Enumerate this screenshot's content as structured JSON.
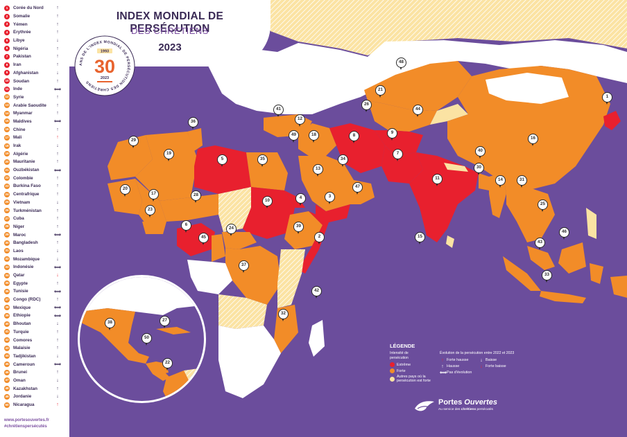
{
  "title": {
    "main": "INDEX MONDIAL DE PERSÉCUTION",
    "sub": "DES CHRÉTIENS",
    "year": "2023"
  },
  "badge": {
    "number": "30",
    "start_year": "1993",
    "end_year": "2023",
    "ring_text": "ANS DE L'INDEX MONDIAL DE PERSÉCUTION DES CHRÉTIENS"
  },
  "colors": {
    "extreme": "#e8202e",
    "forte": "#f28c28",
    "autres": "#fbe3a3",
    "ocean": "#6b4d9c",
    "land_none": "#ffffff",
    "brand_purple": "#7b4fa0",
    "text_dark": "#3a2a55"
  },
  "ranking": [
    {
      "rank": "1",
      "country": "Corée du Nord",
      "trend": "↑",
      "level": "extreme"
    },
    {
      "rank": "2",
      "country": "Somalie",
      "trend": "↑",
      "level": "extreme"
    },
    {
      "rank": "3",
      "country": "Yémen",
      "trend": "↑",
      "level": "extreme"
    },
    {
      "rank": "4",
      "country": "Érythrée",
      "trend": "↑",
      "level": "extreme"
    },
    {
      "rank": "5",
      "country": "Libye",
      "trend": "↓",
      "level": "extreme"
    },
    {
      "rank": "6",
      "country": "Nigéria",
      "trend": "↑",
      "level": "extreme"
    },
    {
      "rank": "7",
      "country": "Pakistan",
      "trend": "↑",
      "level": "extreme"
    },
    {
      "rank": "8",
      "country": "Iran",
      "trend": "↑",
      "level": "extreme"
    },
    {
      "rank": "9",
      "country": "Afghanistan",
      "trend": "↓",
      "level": "extreme"
    },
    {
      "rank": "10",
      "country": "Soudan",
      "trend": "↑",
      "level": "extreme"
    },
    {
      "rank": "11",
      "country": "Inde",
      "trend": "⟺",
      "level": "extreme"
    },
    {
      "rank": "12",
      "country": "Syrie",
      "trend": "↑",
      "level": "forte"
    },
    {
      "rank": "13",
      "country": "Arabie Saoudite",
      "trend": "↑",
      "level": "forte"
    },
    {
      "rank": "14",
      "country": "Myanmar",
      "trend": "↑",
      "level": "forte"
    },
    {
      "rank": "15",
      "country": "Maldives",
      "trend": "⟺",
      "level": "forte"
    },
    {
      "rank": "16",
      "country": "Chine",
      "trend": "↑",
      "level": "forte"
    },
    {
      "rank": "17",
      "country": "Mali",
      "trend": "↑",
      "level": "forte",
      "trend_red": true
    },
    {
      "rank": "18",
      "country": "Irak",
      "trend": "↓",
      "level": "forte"
    },
    {
      "rank": "19",
      "country": "Algérie",
      "trend": "↑",
      "level": "forte"
    },
    {
      "rank": "20",
      "country": "Mauritanie",
      "trend": "↑",
      "level": "forte"
    },
    {
      "rank": "21",
      "country": "Ouzbékistan",
      "trend": "⟺",
      "level": "forte"
    },
    {
      "rank": "22",
      "country": "Colombie",
      "trend": "↑",
      "level": "forte"
    },
    {
      "rank": "23",
      "country": "Burkina Faso",
      "trend": "↑",
      "level": "forte"
    },
    {
      "rank": "24",
      "country": "Centrafrique",
      "trend": "↑",
      "level": "forte"
    },
    {
      "rank": "25",
      "country": "Vietnam",
      "trend": "↓",
      "level": "forte"
    },
    {
      "rank": "26",
      "country": "Turkménistan",
      "trend": "↑",
      "level": "forte"
    },
    {
      "rank": "27",
      "country": "Cuba",
      "trend": "↑",
      "level": "forte"
    },
    {
      "rank": "28",
      "country": "Niger",
      "trend": "↑",
      "level": "forte"
    },
    {
      "rank": "29",
      "country": "Maroc",
      "trend": "⟺",
      "level": "forte"
    },
    {
      "rank": "30",
      "country": "Bangladesh",
      "trend": "↑",
      "level": "forte"
    },
    {
      "rank": "31",
      "country": "Laos",
      "trend": "↓",
      "level": "forte"
    },
    {
      "rank": "32",
      "country": "Mozambique",
      "trend": "↓",
      "level": "forte"
    },
    {
      "rank": "33",
      "country": "Indonésie",
      "trend": "⟺",
      "level": "forte"
    },
    {
      "rank": "34",
      "country": "Qatar",
      "trend": "↓",
      "level": "forte",
      "trend_red": true
    },
    {
      "rank": "35",
      "country": "Égypte",
      "trend": "↑",
      "level": "forte"
    },
    {
      "rank": "36",
      "country": "Tunisie",
      "trend": "⟺",
      "level": "forte"
    },
    {
      "rank": "37",
      "country": "Congo (RDC)",
      "trend": "↑",
      "level": "forte"
    },
    {
      "rank": "38",
      "country": "Mexique",
      "trend": "⟺",
      "level": "forte"
    },
    {
      "rank": "39",
      "country": "Éthiopie",
      "trend": "⟺",
      "level": "forte"
    },
    {
      "rank": "40",
      "country": "Bhoutan",
      "trend": "↓",
      "level": "forte"
    },
    {
      "rank": "41",
      "country": "Turquie",
      "trend": "↑",
      "level": "forte"
    },
    {
      "rank": "42",
      "country": "Comores",
      "trend": "↑",
      "level": "forte"
    },
    {
      "rank": "43",
      "country": "Malaisie",
      "trend": "↑",
      "level": "forte"
    },
    {
      "rank": "44",
      "country": "Tadjikistan",
      "trend": "↓",
      "level": "forte"
    },
    {
      "rank": "45",
      "country": "Cameroun",
      "trend": "⟺",
      "level": "forte"
    },
    {
      "rank": "46",
      "country": "Brunei",
      "trend": "↑",
      "level": "forte"
    },
    {
      "rank": "47",
      "country": "Oman",
      "trend": "↓",
      "level": "forte"
    },
    {
      "rank": "48",
      "country": "Kazakhstan",
      "trend": "↑",
      "level": "forte"
    },
    {
      "rank": "49",
      "country": "Jordanie",
      "trend": "↓",
      "level": "forte"
    },
    {
      "rank": "50",
      "country": "Nicaragua",
      "trend": "↑",
      "level": "forte",
      "trend_red": true
    }
  ],
  "footer": {
    "url": "www.portesouvertes.fr",
    "hashtag": "#chrétienspersécutés"
  },
  "legend": {
    "title": "LÉGENDE",
    "intensity_label": "Intensité de persécution",
    "items": [
      {
        "label": "Extrême",
        "level": "extreme"
      },
      {
        "label": "Forte",
        "level": "forte"
      },
      {
        "label": "Autres pays où la persécution est forte",
        "level": "autres"
      }
    ],
    "evolution_label": "Évolution de la persécution entre 2022 et 2023",
    "evolution": [
      {
        "label": "Forte hausse",
        "icon": "↑",
        "red": true
      },
      {
        "label": "Baisse",
        "icon": "↓",
        "red": false
      },
      {
        "label": "Hausse",
        "icon": "↑",
        "red": false
      },
      {
        "label": "Forte baisse",
        "icon": "↓",
        "red": true
      },
      {
        "label": "Pas d'évolution",
        "icon": "⟺",
        "red": false
      }
    ]
  },
  "brand": {
    "name_1": "Portes ",
    "name_2": "Ouvertes",
    "tagline_1": "Au service des ",
    "tagline_2": "chrétiens",
    "tagline_3": " persécutés"
  },
  "map_markers": [
    "1",
    "2",
    "3",
    "4",
    "5",
    "6",
    "7",
    "8",
    "9",
    "10",
    "11",
    "12",
    "13",
    "14",
    "15",
    "16",
    "17",
    "18",
    "19",
    "20",
    "21",
    "23",
    "24",
    "25",
    "26",
    "28",
    "29",
    "30",
    "31",
    "32",
    "33",
    "34",
    "35",
    "36",
    "37",
    "39",
    "40",
    "41",
    "42",
    "43",
    "44",
    "45",
    "46",
    "47",
    "48",
    "49"
  ],
  "inset_markers": [
    "22",
    "27",
    "38",
    "50"
  ]
}
